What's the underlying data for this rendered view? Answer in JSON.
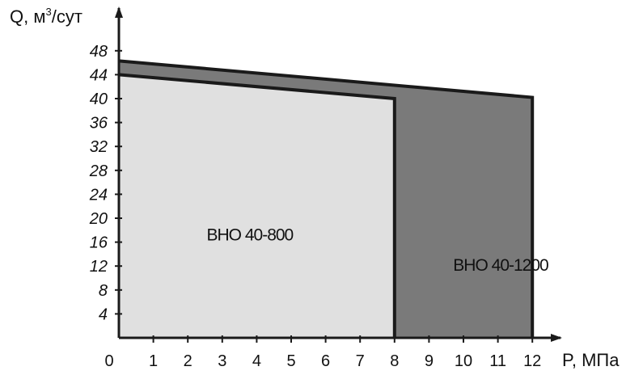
{
  "chart_data": {
    "type": "area",
    "ylabel": "Q, м³/сут",
    "ylabel_base": "Q, м",
    "ylabel_sup": "3",
    "ylabel_tail": "/сут",
    "xlabel": "P, МПа",
    "x_ticks": [
      0,
      1,
      2,
      3,
      4,
      5,
      6,
      7,
      8,
      9,
      10,
      11,
      12
    ],
    "y_ticks": [
      4,
      8,
      12,
      16,
      20,
      24,
      28,
      32,
      36,
      40,
      44,
      48
    ],
    "xlim": [
      0,
      12
    ],
    "ylim": [
      0,
      48
    ],
    "grid": false,
    "series": [
      {
        "name": "ВНО 40-1200",
        "x": [
          0,
          12
        ],
        "y": [
          46.3,
          40.2
        ],
        "color": "#7a7a7a"
      },
      {
        "name": "ВНО 40-800",
        "x": [
          0,
          8
        ],
        "y": [
          44,
          40
        ],
        "color": "#e0e0e0"
      }
    ]
  }
}
